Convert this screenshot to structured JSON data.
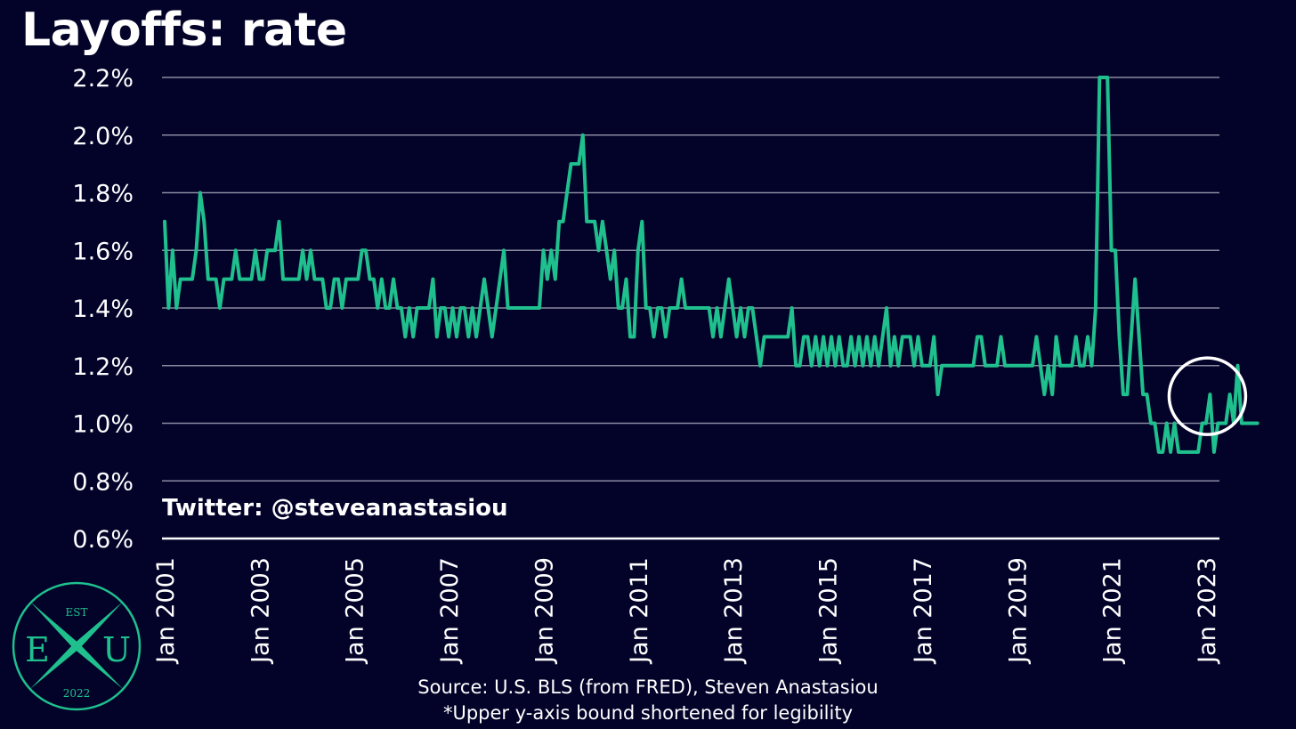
{
  "title": "Layoffs: rate",
  "handle": "Twitter: @steveanastasiou",
  "footer": {
    "source": "Source: U.S. BLS (from FRED), Steven Anastasiou",
    "note": "*Upper y-axis bound shortened for legibility"
  },
  "logo": {
    "top": "EST",
    "left": "E",
    "right": "U",
    "bottom": "2022",
    "color": "#1fc08e"
  },
  "colors": {
    "background": "#03032a",
    "line": "#1fc08e",
    "grid": "#8a8aa0",
    "text": "#ffffff",
    "highlight": "#ffffff"
  },
  "chart_data": {
    "type": "line",
    "title": "Layoffs: rate",
    "xlabel": "",
    "ylabel": "",
    "x_start": "2001-01",
    "frequency": "monthly",
    "x_tick_labels": [
      "Jan 2001",
      "Jan 2003",
      "Jan 2005",
      "Jan 2007",
      "Jan 2009",
      "Jan 2011",
      "Jan 2013",
      "Jan 2015",
      "Jan 2017",
      "Jan 2019",
      "Jan 2021",
      "Jan 2023"
    ],
    "y_tick_labels": [
      "0.6%",
      "0.8%",
      "1.0%",
      "1.2%",
      "1.4%",
      "1.6%",
      "1.8%",
      "2.0%",
      "2.2%"
    ],
    "ylim": [
      0.6,
      2.2
    ],
    "grid": true,
    "legend": "none",
    "highlight": {
      "x": "2023-02",
      "y": 1.1
    },
    "series": [
      {
        "values": [
          1.7,
          1.4,
          1.6,
          1.4,
          1.5,
          1.5,
          1.5,
          1.5,
          1.6,
          1.8,
          1.7,
          1.5,
          1.5,
          1.5,
          1.4,
          1.5,
          1.5,
          1.5,
          1.6,
          1.5,
          1.5,
          1.5,
          1.5,
          1.6,
          1.5,
          1.5,
          1.6,
          1.6,
          1.6,
          1.7,
          1.5,
          1.5,
          1.5,
          1.5,
          1.5,
          1.6,
          1.5,
          1.6,
          1.5,
          1.5,
          1.5,
          1.4,
          1.4,
          1.5,
          1.5,
          1.4,
          1.5,
          1.5,
          1.5,
          1.5,
          1.6,
          1.6,
          1.5,
          1.5,
          1.4,
          1.5,
          1.4,
          1.4,
          1.5,
          1.4,
          1.4,
          1.3,
          1.4,
          1.3,
          1.4,
          1.4,
          1.4,
          1.4,
          1.5,
          1.3,
          1.4,
          1.4,
          1.3,
          1.4,
          1.3,
          1.4,
          1.4,
          1.3,
          1.4,
          1.3,
          1.4,
          1.5,
          1.4,
          1.3,
          1.4,
          1.5,
          1.6,
          1.4,
          1.4,
          1.4,
          1.4,
          1.4,
          1.4,
          1.4,
          1.4,
          1.4,
          1.6,
          1.5,
          1.6,
          1.5,
          1.7,
          1.7,
          1.8,
          1.9,
          1.9,
          1.9,
          2.0,
          1.7,
          1.7,
          1.7,
          1.6,
          1.7,
          1.6,
          1.5,
          1.6,
          1.4,
          1.4,
          1.5,
          1.3,
          1.3,
          1.6,
          1.7,
          1.4,
          1.4,
          1.3,
          1.4,
          1.4,
          1.3,
          1.4,
          1.4,
          1.4,
          1.5,
          1.4,
          1.4,
          1.4,
          1.4,
          1.4,
          1.4,
          1.4,
          1.3,
          1.4,
          1.3,
          1.4,
          1.5,
          1.4,
          1.3,
          1.4,
          1.3,
          1.4,
          1.4,
          1.3,
          1.2,
          1.3,
          1.3,
          1.3,
          1.3,
          1.3,
          1.3,
          1.3,
          1.4,
          1.2,
          1.2,
          1.3,
          1.3,
          1.2,
          1.3,
          1.2,
          1.3,
          1.2,
          1.3,
          1.2,
          1.3,
          1.2,
          1.2,
          1.3,
          1.2,
          1.3,
          1.2,
          1.3,
          1.2,
          1.3,
          1.2,
          1.3,
          1.4,
          1.2,
          1.3,
          1.2,
          1.3,
          1.3,
          1.3,
          1.2,
          1.3,
          1.2,
          1.2,
          1.2,
          1.3,
          1.1,
          1.2,
          1.2,
          1.2,
          1.2,
          1.2,
          1.2,
          1.2,
          1.2,
          1.2,
          1.3,
          1.3,
          1.2,
          1.2,
          1.2,
          1.2,
          1.3,
          1.2,
          1.2,
          1.2,
          1.2,
          1.2,
          1.2,
          1.2,
          1.2,
          1.3,
          1.2,
          1.1,
          1.2,
          1.1,
          1.3,
          1.2,
          1.2,
          1.2,
          1.2,
          1.3,
          1.2,
          1.2,
          1.3,
          1.2,
          1.4,
          2.2,
          2.2,
          2.2,
          1.6,
          1.6,
          1.3,
          1.1,
          1.1,
          1.3,
          1.5,
          1.3,
          1.1,
          1.1,
          1.0,
          1.0,
          0.9,
          0.9,
          1.0,
          0.9,
          1.0,
          0.9,
          0.9,
          0.9,
          0.9,
          0.9,
          0.9,
          1.0,
          1.0,
          1.1,
          0.9,
          1.0,
          1.0,
          1.0,
          1.1,
          1.0,
          1.2,
          1.0,
          1.0,
          1.0,
          1.0,
          1.0
        ]
      }
    ]
  }
}
